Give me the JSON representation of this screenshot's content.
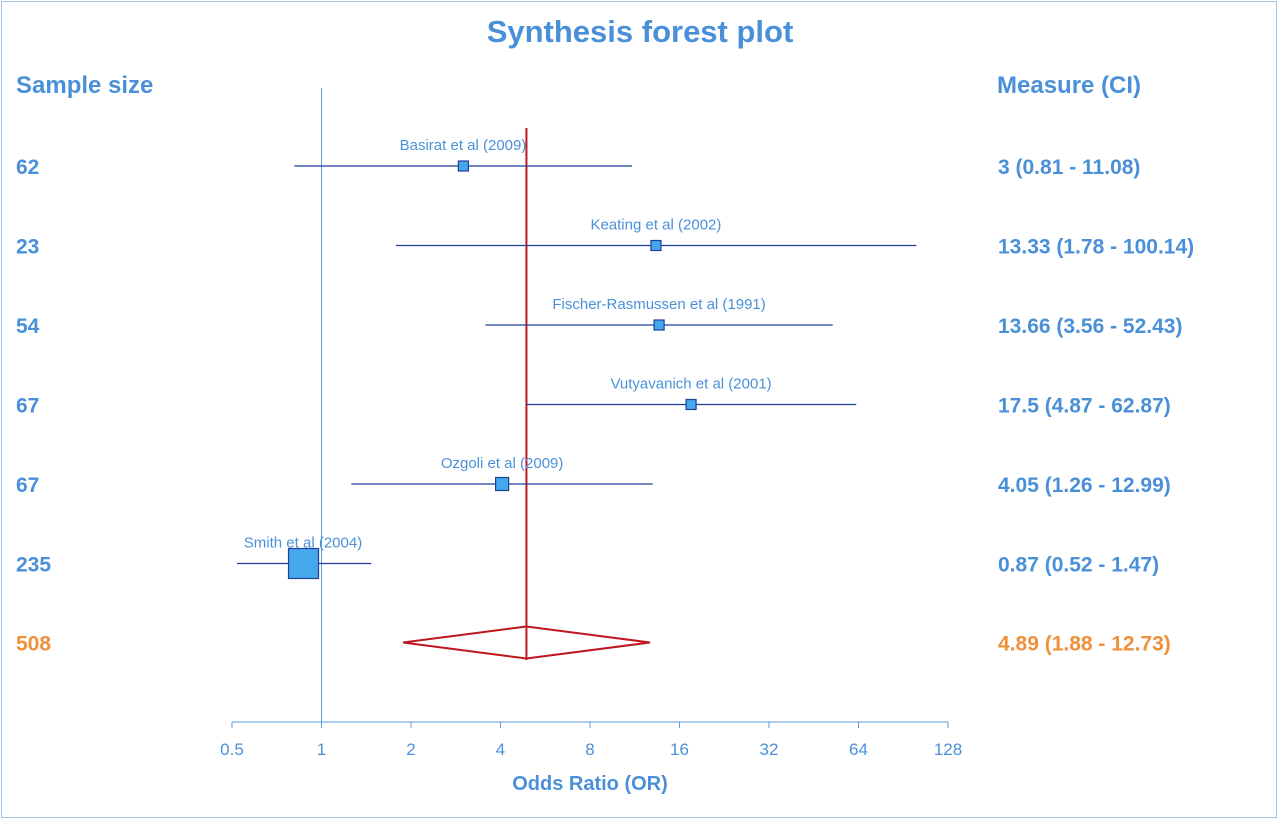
{
  "chart_data": {
    "type": "forest",
    "title": "Synthesis forest plot",
    "left_header": "Sample size",
    "right_header": "Measure (CI)",
    "xlabel": "Odds Ratio (OR)",
    "x_scale": "log2",
    "xlim": [
      0.5,
      128
    ],
    "xticks": [
      0.5,
      1,
      2,
      4,
      8,
      16,
      32,
      64,
      128
    ],
    "xtick_labels": [
      "0.5",
      "1",
      "2",
      "4",
      "8",
      "16",
      "32",
      "64",
      "128"
    ],
    "reference_line": 1,
    "pooled_line": 4.89,
    "studies": [
      {
        "label": "Basirat et al  (2009)",
        "n": "62",
        "or": 3,
        "lo": 0.81,
        "hi": 11.08,
        "text": "3 (0.81 - 11.08)",
        "weight": 1
      },
      {
        "label": "Keating et al (2002)",
        "n": "23",
        "or": 13.33,
        "lo": 1.78,
        "hi": 100.14,
        "text": "13.33 (1.78 - 100.14)",
        "weight": 1
      },
      {
        "label": "Fischer-Rasmussen  et al (1991)",
        "n": "54",
        "or": 13.66,
        "lo": 3.56,
        "hi": 52.43,
        "text": "13.66 (3.56 - 52.43)",
        "weight": 1
      },
      {
        "label": "Vutyavanich et al (2001)",
        "n": "67",
        "or": 17.5,
        "lo": 4.87,
        "hi": 62.87,
        "text": "17.5 (4.87 - 62.87)",
        "weight": 1
      },
      {
        "label": "Ozgoli et al (2009)",
        "n": "67",
        "or": 4.05,
        "lo": 1.26,
        "hi": 12.99,
        "text": "4.05 (1.26 - 12.99)",
        "weight": 1.3
      },
      {
        "label": "Smith et al (2004)",
        "n": "235",
        "or": 0.87,
        "lo": 0.52,
        "hi": 1.47,
        "text": "0.87 (0.52 - 1.47)",
        "weight": 3
      }
    ],
    "pooled": {
      "n": "508",
      "or": 4.89,
      "lo": 1.88,
      "hi": 12.73,
      "text": "4.89 (1.88 - 12.73)"
    },
    "colors": {
      "text": "#4a90d9",
      "line": "#1f3f99",
      "marker_fill": "#45a8ec",
      "marker_stroke": "#1f3f99",
      "pooled_text": "#f0903a",
      "pooled_line": "#c0161d"
    }
  }
}
